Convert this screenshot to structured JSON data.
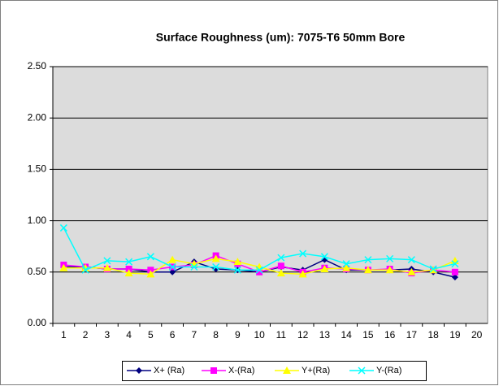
{
  "chart_data": {
    "type": "line",
    "title": "Surface Roughness (um): 7075-T6 50mm Bore",
    "categories": [
      "1",
      "2",
      "3",
      "4",
      "5",
      "6",
      "7",
      "8",
      "9",
      "10",
      "11",
      "12",
      "13",
      "14",
      "15",
      "16",
      "17",
      "18",
      "19",
      "20"
    ],
    "series": [
      {
        "name": "X+ (Ra)",
        "color": "#000080",
        "marker": "diamond",
        "values": [
          0.55,
          0.55,
          0.53,
          0.53,
          0.5,
          0.5,
          0.6,
          0.53,
          0.52,
          0.5,
          0.55,
          0.52,
          0.62,
          0.52,
          0.52,
          0.52,
          0.53,
          0.5,
          0.45,
          null
        ]
      },
      {
        "name": "X-(Ra)",
        "color": "#ff00ff",
        "marker": "square",
        "values": [
          0.57,
          0.55,
          0.53,
          0.53,
          0.52,
          0.55,
          0.57,
          0.66,
          0.58,
          0.5,
          0.56,
          0.5,
          0.54,
          0.53,
          0.52,
          0.53,
          0.49,
          0.52,
          0.5,
          null
        ]
      },
      {
        "name": "Y+(Ra)",
        "color": "#ffff00",
        "marker": "triangle",
        "values": [
          0.54,
          0.54,
          0.54,
          0.49,
          0.48,
          0.62,
          0.58,
          0.63,
          0.6,
          0.55,
          0.49,
          0.48,
          0.53,
          0.54,
          0.52,
          0.52,
          0.5,
          0.52,
          0.61,
          null
        ]
      },
      {
        "name": "Y-(Ra)",
        "color": "#00ffff",
        "marker": "x",
        "values": [
          0.93,
          0.52,
          0.61,
          0.6,
          0.65,
          0.55,
          0.55,
          0.55,
          0.52,
          0.52,
          0.64,
          0.68,
          0.65,
          0.58,
          0.62,
          0.63,
          0.62,
          0.53,
          0.58,
          null
        ]
      }
    ],
    "ylim": [
      0,
      2.5
    ],
    "yticks": [
      {
        "value": 0,
        "label": "0.00"
      },
      {
        "value": 0.5,
        "label": "0.50"
      },
      {
        "value": 1,
        "label": "1.00"
      },
      {
        "value": 1.5,
        "label": "1.50"
      },
      {
        "value": 2,
        "label": "2.00"
      },
      {
        "value": 2.5,
        "label": "2.50"
      }
    ],
    "grid": true,
    "legend": "bottom"
  }
}
